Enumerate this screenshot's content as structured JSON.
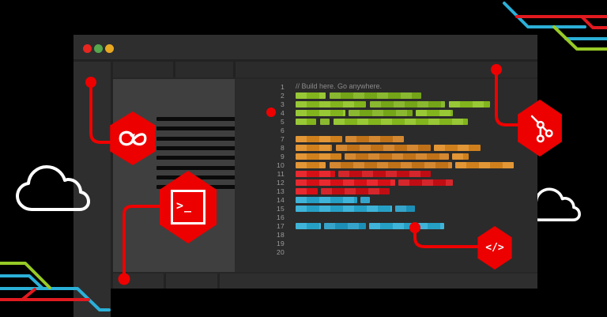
{
  "scene": {
    "accent_red": "#ee0000",
    "cloud_color": "#ffffff"
  },
  "window": {
    "traffic_lights": [
      {
        "name": "close",
        "color": "#e8251f"
      },
      {
        "name": "minimize",
        "color": "#57a74c"
      },
      {
        "name": "zoom",
        "color": "#e9a822"
      }
    ]
  },
  "sidebar": {
    "bar_count": 8
  },
  "editor": {
    "comment": "// Build here. Go anywhere.",
    "total_lines": 20,
    "palette": {
      "green": [
        "#8cc21f",
        "#7db019"
      ],
      "orange": [
        "#df8a1f",
        "#cf7a1a"
      ],
      "red": [
        "#e41118",
        "#cf0e14"
      ],
      "blue": [
        "#29abd4",
        "#1f9ac4"
      ]
    },
    "lines": [
      {
        "n": 2,
        "color": "green",
        "segments": [
          [
            374,
            412
          ],
          [
            417,
            533
          ]
        ]
      },
      {
        "n": 3,
        "color": "green",
        "segments": [
          [
            374,
            463
          ],
          [
            468,
            563
          ],
          [
            568,
            620
          ]
        ]
      },
      {
        "n": 4,
        "color": "green",
        "segments": [
          [
            374,
            437
          ],
          [
            441,
            522
          ],
          [
            526,
            573
          ]
        ]
      },
      {
        "n": 5,
        "color": "green",
        "segments": [
          [
            374,
            400
          ],
          [
            405,
            417
          ],
          [
            422,
            592
          ]
        ]
      },
      {
        "n": 7,
        "color": "orange",
        "segments": [
          [
            374,
            433
          ],
          [
            437,
            511
          ]
        ]
      },
      {
        "n": 8,
        "color": "orange",
        "segments": [
          [
            374,
            420
          ],
          [
            425,
            545
          ],
          [
            549,
            608
          ]
        ]
      },
      {
        "n": 9,
        "color": "orange",
        "segments": [
          [
            374,
            432
          ],
          [
            436,
            568
          ],
          [
            572,
            593
          ]
        ]
      },
      {
        "n": 10,
        "color": "orange",
        "segments": [
          [
            374,
            412
          ],
          [
            417,
            572
          ],
          [
            576,
            650
          ]
        ]
      },
      {
        "n": 11,
        "color": "red",
        "segments": [
          [
            374,
            424
          ],
          [
            428,
            545
          ]
        ]
      },
      {
        "n": 12,
        "color": "red",
        "segments": [
          [
            374,
            500
          ],
          [
            504,
            573
          ]
        ]
      },
      {
        "n": 13,
        "color": "red",
        "segments": [
          [
            374,
            402
          ],
          [
            406,
            493
          ]
        ]
      },
      {
        "n": 14,
        "color": "blue",
        "segments": [
          [
            374,
            452
          ],
          [
            456,
            468
          ]
        ]
      },
      {
        "n": 15,
        "color": "blue",
        "segments": [
          [
            374,
            496
          ],
          [
            500,
            525
          ]
        ]
      },
      {
        "n": 17,
        "color": "blue",
        "segments": [
          [
            374,
            406
          ],
          [
            410,
            463
          ],
          [
            467,
            562
          ]
        ]
      }
    ]
  },
  "badges": {
    "devops_loop": {
      "name": "infinity-loop-icon"
    },
    "terminal": {
      "glyph": ">_"
    },
    "git": {
      "name": "git-branch-icon"
    },
    "code": {
      "glyph": "</>"
    }
  }
}
